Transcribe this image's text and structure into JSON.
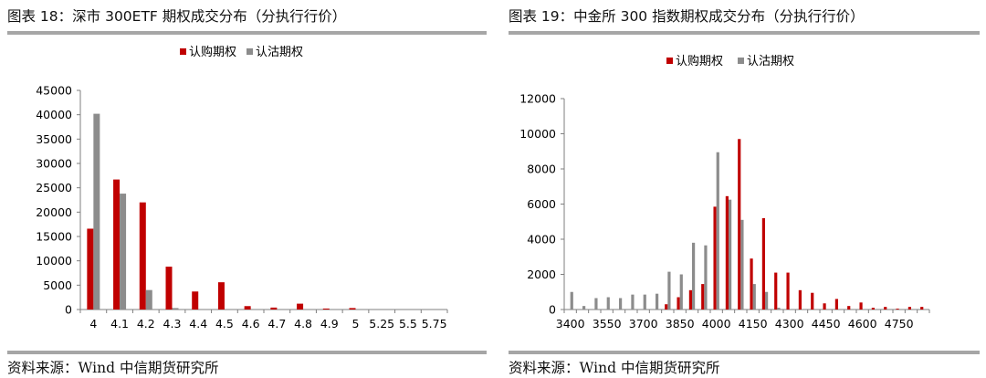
{
  "left": {
    "title": "图表 18：深市 300ETF 期权成交分布（分执行行价）",
    "source": "资料来源：Wind 中信期货研究所"
  },
  "right": {
    "title": "图表 19：中金所 300 指数期权成交分布（分执行行价）",
    "source": "资料来源：Wind 中信期货研究所"
  },
  "colors": {
    "call": "#c00000",
    "put": "#8c8c8c",
    "rule": "#a6a6a6"
  },
  "chart_data": [
    {
      "type": "bar",
      "legend": [
        "认购期权",
        "认沽期权"
      ],
      "legend_position": "top",
      "grid": false,
      "categories": [
        "4",
        "4.1",
        "4.2",
        "4.3",
        "4.4",
        "4.5",
        "4.6",
        "4.7",
        "4.8",
        "4.9",
        "5",
        "5.25",
        "5.5",
        "5.75"
      ],
      "series": [
        {
          "name": "认购期权",
          "values": [
            16600,
            26700,
            22000,
            8800,
            3700,
            5600,
            700,
            400,
            1200,
            200,
            300,
            0,
            0,
            0
          ]
        },
        {
          "name": "认沽期权",
          "values": [
            40200,
            23800,
            4000,
            300,
            0,
            0,
            0,
            0,
            0,
            0,
            0,
            0,
            0,
            0
          ]
        }
      ],
      "ylim": [
        0,
        45000
      ],
      "yticks": [
        0,
        5000,
        10000,
        15000,
        20000,
        25000,
        30000,
        35000,
        40000,
        45000
      ]
    },
    {
      "type": "bar",
      "legend": [
        "认购期权",
        "认沽期权"
      ],
      "legend_position": "top",
      "grid": false,
      "categories": [
        3400,
        3450,
        3500,
        3550,
        3600,
        3650,
        3700,
        3750,
        3800,
        3850,
        3900,
        3950,
        4000,
        4050,
        4100,
        4150,
        4200,
        4250,
        4300,
        4350,
        4400,
        4450,
        4500,
        4550,
        4600,
        4650,
        4700,
        4750,
        4800,
        4850
      ],
      "xticks": [
        3400,
        3550,
        3700,
        3850,
        4000,
        4150,
        4300,
        4450,
        4600,
        4750
      ],
      "series": [
        {
          "name": "认购期权",
          "values": [
            0,
            0,
            0,
            0,
            0,
            0,
            0,
            0,
            300,
            700,
            1100,
            1450,
            5850,
            6450,
            9700,
            2900,
            5200,
            2100,
            2100,
            1100,
            950,
            350,
            600,
            200,
            400,
            100,
            150,
            50,
            150,
            150
          ]
        },
        {
          "name": "认沽期权",
          "values": [
            1000,
            200,
            650,
            700,
            650,
            850,
            850,
            900,
            2150,
            2000,
            3800,
            3650,
            8950,
            6250,
            5100,
            1450,
            1000,
            100,
            0,
            0,
            0,
            0,
            0,
            0,
            0,
            0,
            0,
            0,
            0,
            0
          ]
        }
      ],
      "ylim": [
        0,
        12000
      ],
      "yticks": [
        0,
        2000,
        4000,
        6000,
        8000,
        10000,
        12000
      ]
    }
  ]
}
